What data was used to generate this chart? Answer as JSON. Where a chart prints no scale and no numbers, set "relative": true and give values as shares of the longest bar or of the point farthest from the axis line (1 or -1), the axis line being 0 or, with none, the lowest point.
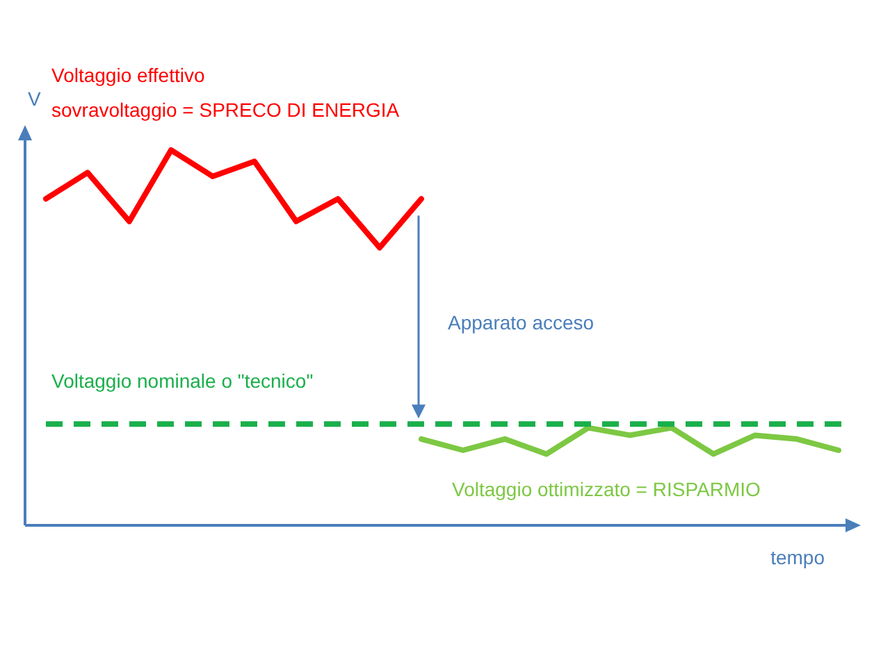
{
  "chart_data": {
    "type": "line",
    "relative": true,
    "xlabel": "tempo",
    "ylabel": "V",
    "categories": [
      null,
      null,
      null,
      null,
      null,
      null,
      null,
      null,
      null,
      null,
      null,
      null,
      null,
      null,
      null,
      null,
      null,
      null,
      null,
      null
    ],
    "series": [
      {
        "name": "Voltaggio effettivo",
        "color": "#ff0000",
        "values": [
          0.87,
          0.94,
          0.81,
          1,
          0.93,
          0.97,
          0.81,
          0.87,
          0.74,
          0.87,
          null,
          null,
          null,
          null,
          null,
          null,
          null,
          null,
          null,
          null
        ]
      },
      {
        "name": "Voltaggio ottimizzato = RISPARMIO",
        "color": "#7dc843",
        "values": [
          null,
          null,
          null,
          null,
          null,
          null,
          null,
          null,
          null,
          0.23,
          0.2,
          0.23,
          0.19,
          0.26,
          0.24,
          0.26,
          0.19,
          0.24,
          0.23,
          0.2
        ]
      }
    ],
    "ref_lines": [
      {
        "axis": "y",
        "value": 0.27,
        "label": "Voltaggio nominale o \"tecnico\"",
        "color": "#1aaf4b",
        "line_style": "dashed"
      }
    ],
    "annotations": [
      "sovravoltaggio = SPRECO DI ENERGIA",
      "Apparato acceso"
    ],
    "legend": false,
    "marker": "none",
    "line_style": "solid"
  }
}
